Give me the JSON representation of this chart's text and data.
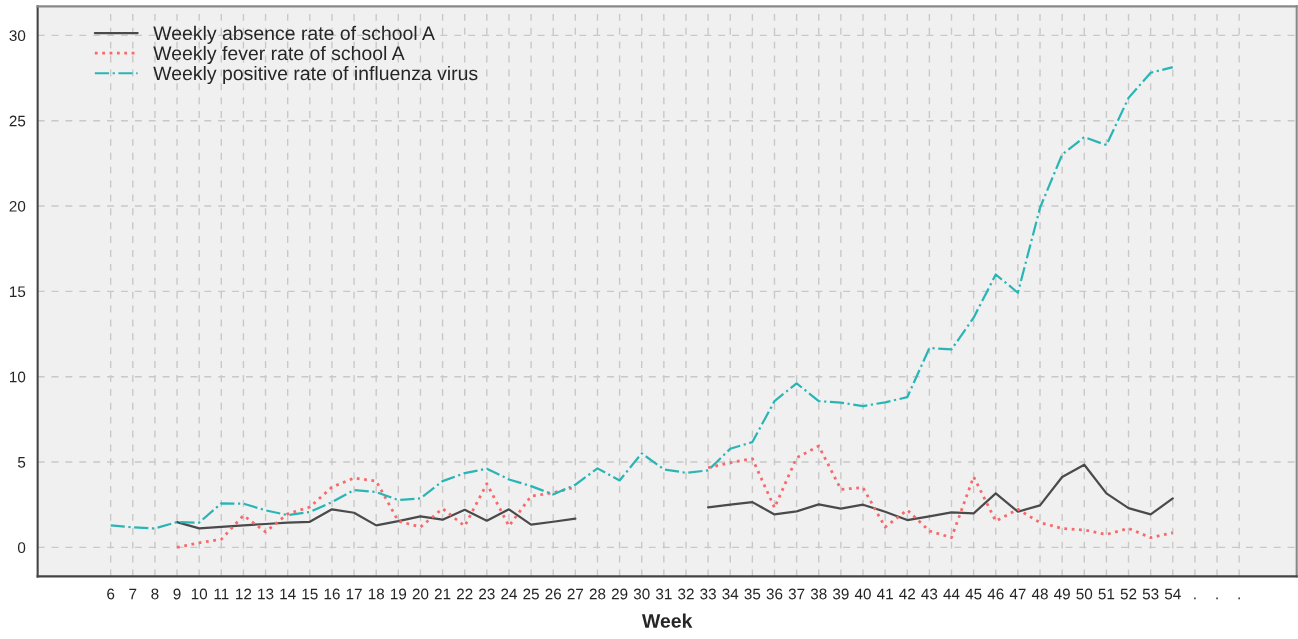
{
  "chart_data": {
    "type": "line",
    "xlabel": "Week",
    "categories": [
      "6",
      "7",
      "8",
      "9",
      "10",
      "11",
      "12",
      "13",
      "14",
      "15",
      "16",
      "17",
      "18",
      "19",
      "20",
      "21",
      "22",
      "23",
      "24",
      "25",
      "26",
      "27",
      "28",
      "29",
      "30",
      "31",
      "32",
      "33",
      "34",
      "35",
      "36",
      "37",
      "38",
      "39",
      "40",
      "41",
      "42",
      "43",
      "44",
      "45",
      "46",
      "47",
      "48",
      "49",
      "50",
      "51",
      "52",
      "53",
      "54",
      ".",
      ".",
      "."
    ],
    "series": [
      {
        "name": "Weekly absence rate of school A",
        "color": "#4a4a4a",
        "line_style": "solid",
        "values": [
          null,
          null,
          null,
          1.48,
          1.11,
          1.2,
          1.29,
          1.37,
          1.45,
          1.5,
          2.23,
          2.03,
          1.29,
          1.54,
          1.82,
          1.62,
          2.2,
          1.56,
          2.23,
          1.33,
          1.5,
          1.68,
          null,
          null,
          null,
          null,
          null,
          2.34,
          2.5,
          2.65,
          1.93,
          2.11,
          2.52,
          2.27,
          2.5,
          2.09,
          1.6,
          1.82,
          2.05,
          1.99,
          3.16,
          2.09,
          2.46,
          4.12,
          4.84,
          3.16,
          2.3,
          1.93,
          2.87,
          null,
          null,
          null
        ]
      },
      {
        "name": "Weekly fever rate of school A",
        "color": "#f8696b",
        "line_style": "dotted",
        "values": [
          null,
          null,
          null,
          0,
          0.27,
          0.47,
          1.87,
          0.9,
          1.97,
          2.36,
          3.53,
          4.06,
          3.88,
          1.54,
          1.19,
          2.27,
          1.25,
          3.73,
          1.25,
          3.0,
          3.2,
          3.53,
          null,
          null,
          null,
          null,
          null,
          4.67,
          4.96,
          5.2,
          2.32,
          5.25,
          5.94,
          3.4,
          3.5,
          1.19,
          2.19,
          0.96,
          0.57,
          4.14,
          1.54,
          2.23,
          1.45,
          1.11,
          1.02,
          0.76,
          1.11,
          0.57,
          0.86,
          null,
          null,
          null
        ]
      },
      {
        "name": "Weekly positive rate of influenza virus",
        "color": "#2ab5b5",
        "line_style": "dashdot",
        "values": [
          1.29,
          1.17,
          1.11,
          1.48,
          1.45,
          2.58,
          2.56,
          2.17,
          1.89,
          2.07,
          2.65,
          3.36,
          3.24,
          2.77,
          2.87,
          3.88,
          4.35,
          4.61,
          3.98,
          3.59,
          3.1,
          3.67,
          4.63,
          3.92,
          5.51,
          4.57,
          4.37,
          4.51,
          5.78,
          6.17,
          8.57,
          9.61,
          8.57,
          8.48,
          8.28,
          8.5,
          8.8,
          11.68,
          11.6,
          13.46,
          15.99,
          14.92,
          19.9,
          23.02,
          24.04,
          23.57,
          26.34,
          27.81,
          28.14,
          null,
          null,
          null
        ]
      }
    ],
    "ylim": [
      -1.7,
      31.7
    ],
    "yticks": [
      0,
      5,
      10,
      15,
      20,
      25,
      30
    ],
    "grid": true,
    "legend": "top left"
  }
}
